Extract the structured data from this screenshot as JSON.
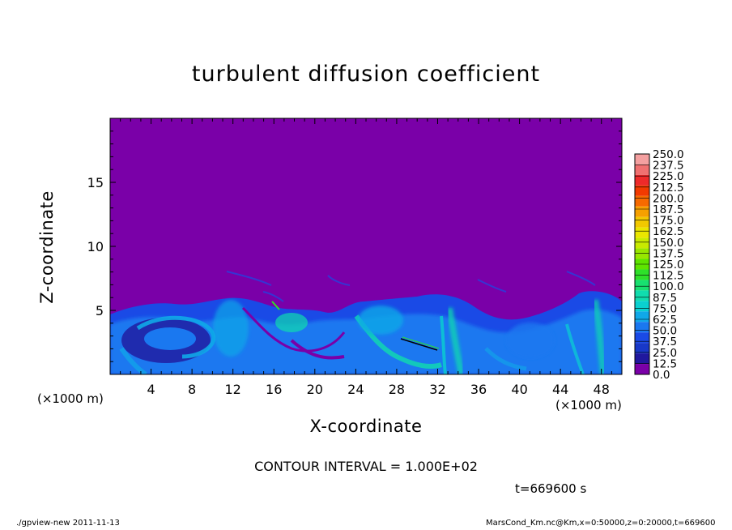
{
  "chart_data": {
    "type": "heatmap",
    "title": "turbulent diffusion coefficient",
    "xlabel": "X-coordinate",
    "ylabel": "Z-coordinate",
    "x_unit_label": "(×1000 m)",
    "x_unit_label_right": "(×1000 m)",
    "xlim": [
      0,
      50
    ],
    "ylim": [
      0,
      20
    ],
    "x_ticks": [
      4,
      8,
      12,
      16,
      20,
      24,
      28,
      32,
      36,
      40,
      44,
      48
    ],
    "y_ticks": [
      5,
      10,
      15
    ],
    "colorbar": {
      "levels": [
        "250.0",
        "237.5",
        "225.0",
        "212.5",
        "200.0",
        "187.5",
        "175.0",
        "162.5",
        "150.0",
        "137.5",
        "125.0",
        "112.5",
        "100.0",
        "87.5",
        "75.0",
        "62.5",
        "50.0",
        "37.5",
        "25.0",
        "12.5",
        "0.0"
      ],
      "colors": [
        "#f4a0a0",
        "#f07070",
        "#ee2a2a",
        "#f23a00",
        "#f66a00",
        "#f6a000",
        "#f2c800",
        "#eae600",
        "#c8ea00",
        "#98e600",
        "#5ee400",
        "#2ee02a",
        "#18e070",
        "#10dcae",
        "#0ad0d0",
        "#10a8e8",
        "#1a78f0",
        "#1a4ae6",
        "#1838c8",
        "#20189e",
        "#7a00a8"
      ]
    },
    "background_value_color": "#7a00a8",
    "contour_interval": "CONTOUR INTERVAL = 1.000E+02",
    "time_label": "t=669600 s"
  },
  "footer": {
    "left": "./gpview-new   2011-11-13",
    "right": "MarsCond_Km.nc@Km,x=0:50000,z=0:20000,t=669600"
  }
}
